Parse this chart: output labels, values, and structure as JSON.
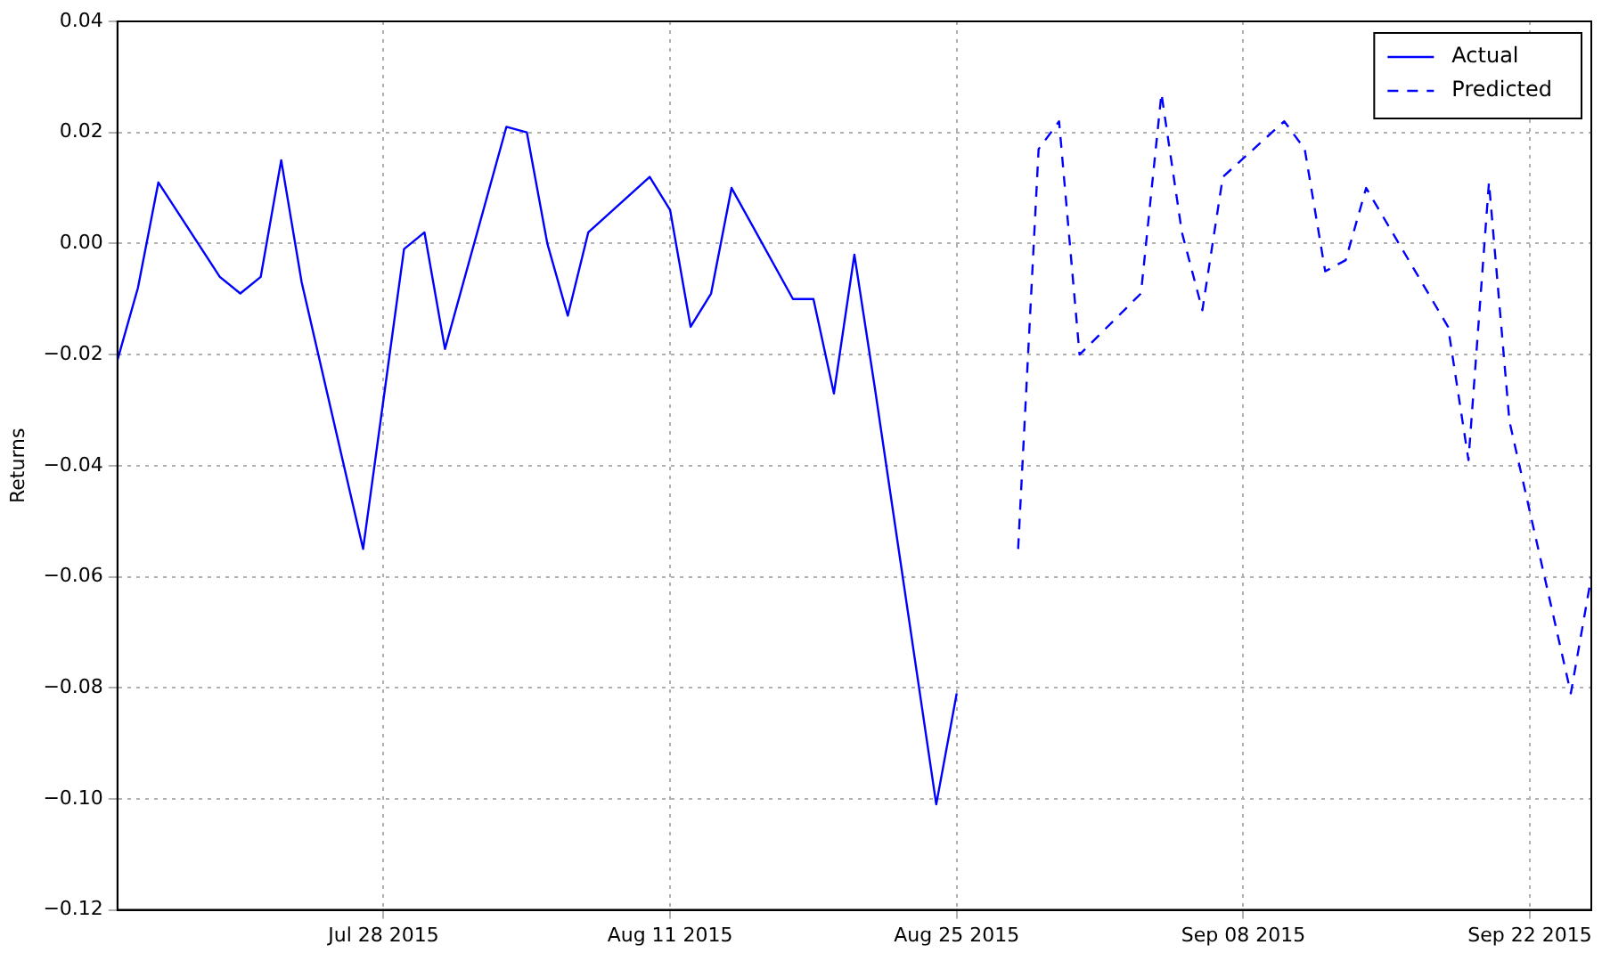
{
  "chart_data": {
    "type": "line",
    "ylabel": "Returns",
    "legend": "top right",
    "grid": true,
    "marker": "none",
    "xlim": [
      "2015-07-15",
      "2015-09-25"
    ],
    "xticks": [
      {
        "value": "2015-07-28",
        "label": "Jul 28 2015"
      },
      {
        "value": "2015-08-11",
        "label": "Aug 11 2015"
      },
      {
        "value": "2015-08-25",
        "label": "Aug 25 2015"
      },
      {
        "value": "2015-09-08",
        "label": "Sep 08 2015"
      },
      {
        "value": "2015-09-22",
        "label": "Sep 22 2015"
      }
    ],
    "ylim": [
      -0.12,
      0.04
    ],
    "yticks": [
      {
        "value": -0.12,
        "label": "−0.12"
      },
      {
        "value": -0.1,
        "label": "−0.10"
      },
      {
        "value": -0.08,
        "label": "−0.08"
      },
      {
        "value": -0.06,
        "label": "−0.06"
      },
      {
        "value": -0.04,
        "label": "−0.04"
      },
      {
        "value": -0.02,
        "label": "−0.02"
      },
      {
        "value": 0,
        "label": "0.00"
      },
      {
        "value": 0.02,
        "label": "0.02"
      },
      {
        "value": 0.04,
        "label": "0.04"
      }
    ],
    "series": [
      {
        "name": "Actual",
        "color": "#0000ff",
        "line_style": "solid",
        "x": [
          "2015-07-15",
          "2015-07-16",
          "2015-07-17",
          "2015-07-20",
          "2015-07-21",
          "2015-07-22",
          "2015-07-23",
          "2015-07-24",
          "2015-07-27",
          "2015-07-28",
          "2015-07-29",
          "2015-07-30",
          "2015-07-31",
          "2015-08-03",
          "2015-08-04",
          "2015-08-05",
          "2015-08-06",
          "2015-08-07",
          "2015-08-10",
          "2015-08-11",
          "2015-08-12",
          "2015-08-13",
          "2015-08-14",
          "2015-08-17",
          "2015-08-18",
          "2015-08-19",
          "2015-08-20",
          "2015-08-21",
          "2015-08-24",
          "2015-08-25"
        ],
        "values": [
          -0.021,
          -0.008,
          0.011,
          -0.006,
          -0.009,
          -0.006,
          0.015,
          -0.007,
          -0.055,
          -0.028,
          -0.001,
          0.002,
          -0.019,
          0.021,
          0.02,
          0.0,
          -0.013,
          0.002,
          0.012,
          0.006,
          -0.015,
          -0.009,
          0.01,
          -0.01,
          -0.01,
          -0.027,
          -0.002,
          -0.026,
          -0.101,
          -0.081
        ]
      },
      {
        "name": "Predicted",
        "color": "#0000ff",
        "line_style": "dashed",
        "x": [
          "2015-08-28",
          "2015-08-29",
          "2015-08-30",
          "2015-08-31",
          "2015-09-03",
          "2015-09-04",
          "2015-09-05",
          "2015-09-06",
          "2015-09-07",
          "2015-09-10",
          "2015-09-11",
          "2015-09-12",
          "2015-09-13",
          "2015-09-14",
          "2015-09-18",
          "2015-09-19",
          "2015-09-20",
          "2015-09-21",
          "2015-09-24",
          "2015-09-25"
        ],
        "values": [
          -0.055,
          0.017,
          0.022,
          -0.02,
          -0.009,
          0.027,
          0.002,
          -0.012,
          0.012,
          0.022,
          0.017,
          -0.005,
          -0.003,
          0.01,
          -0.015,
          -0.039,
          0.011,
          -0.032,
          -0.081,
          -0.06
        ]
      }
    ]
  }
}
